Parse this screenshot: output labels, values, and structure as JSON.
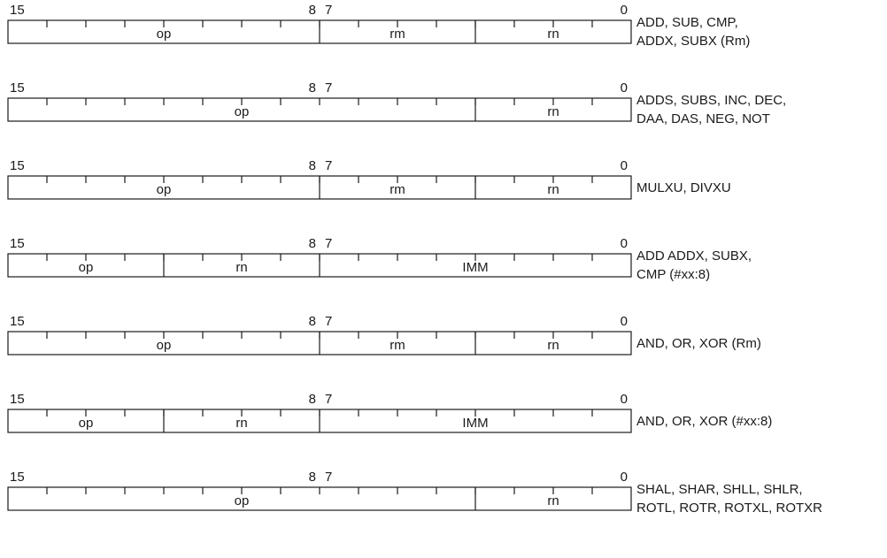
{
  "bit_labels": {
    "b15": "15",
    "b8": "8",
    "b7": "7",
    "b0": "0"
  },
  "formats": [
    {
      "fields": [
        {
          "label": "op",
          "width": 8
        },
        {
          "label": "rm",
          "width": 4
        },
        {
          "label": "rn",
          "width": 4
        }
      ],
      "description": [
        "ADD, SUB, CMP,",
        "ADDX, SUBX (Rm)"
      ]
    },
    {
      "fields": [
        {
          "label": "op",
          "width": 12
        },
        {
          "label": "rn",
          "width": 4
        }
      ],
      "description": [
        "ADDS, SUBS, INC, DEC,",
        "DAA, DAS, NEG, NOT"
      ]
    },
    {
      "fields": [
        {
          "label": "op",
          "width": 8
        },
        {
          "label": "rm",
          "width": 4
        },
        {
          "label": "rn",
          "width": 4
        }
      ],
      "description": [
        "MULXU, DIVXU"
      ]
    },
    {
      "fields": [
        {
          "label": "op",
          "width": 4
        },
        {
          "label": "rn",
          "width": 4
        },
        {
          "label": "IMM",
          "width": 8
        }
      ],
      "description": [
        "ADD ADDX, SUBX,",
        "CMP (#xx:8)"
      ]
    },
    {
      "fields": [
        {
          "label": "op",
          "width": 8
        },
        {
          "label": "rm",
          "width": 4
        },
        {
          "label": "rn",
          "width": 4
        }
      ],
      "description": [
        "AND, OR, XOR (Rm)"
      ]
    },
    {
      "fields": [
        {
          "label": "op",
          "width": 4
        },
        {
          "label": "rn",
          "width": 4
        },
        {
          "label": "IMM",
          "width": 8
        }
      ],
      "description": [
        "AND, OR, XOR (#xx:8)"
      ]
    },
    {
      "fields": [
        {
          "label": "op",
          "width": 12
        },
        {
          "label": "rn",
          "width": 4
        }
      ],
      "description": [
        "SHAL, SHAR, SHLL, SHLR,",
        "ROTL, ROTR, ROTXL, ROTXR"
      ]
    }
  ]
}
